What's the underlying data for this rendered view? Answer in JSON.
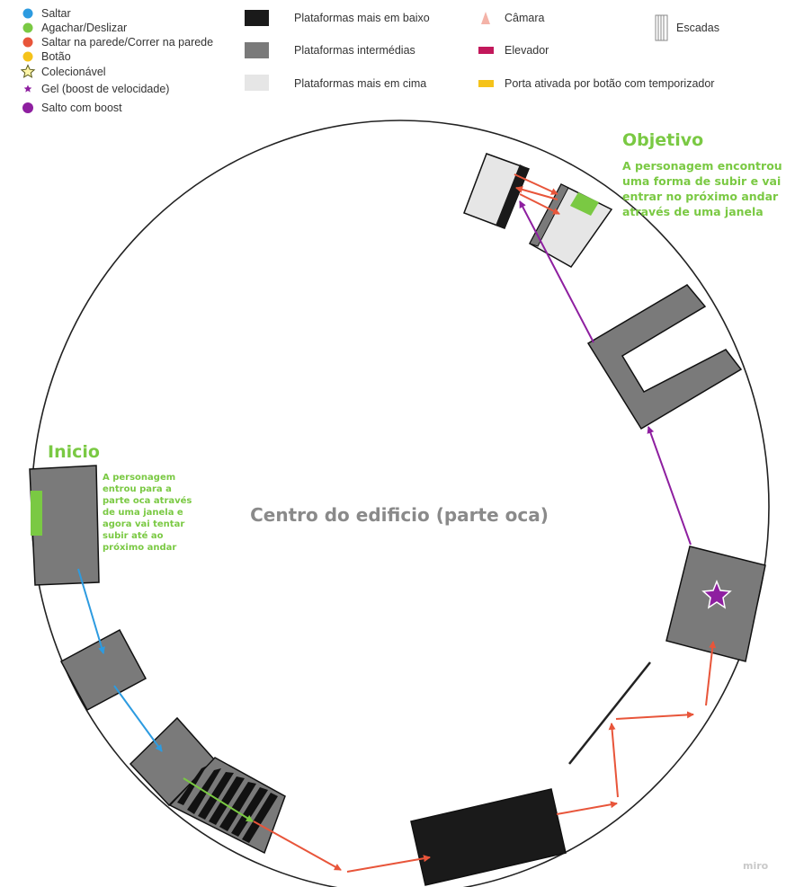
{
  "legend_left": [
    {
      "label": "Saltar",
      "color": "#2d9be0",
      "icon": "blue-dot-icon"
    },
    {
      "label": "Agachar/Deslizar",
      "color": "#7ac943",
      "icon": "green-dot-icon"
    },
    {
      "label": "Saltar na parede/Correr na parede",
      "color": "#e8553a",
      "icon": "red-dot-icon"
    },
    {
      "label": "Botão",
      "color": "#f5c31a",
      "icon": "yellow-dot-icon"
    },
    {
      "label": "Colecionável",
      "color": "#f5e23a",
      "icon": "star-outline-icon"
    },
    {
      "label": "Gel (boost de velocidade)",
      "color": "#8e1fa0",
      "icon": "purple-star-icon"
    },
    {
      "label": "Salto com boost",
      "color": "#8e1fa0",
      "icon": "purple-dot-icon"
    }
  ],
  "legend_platforms": [
    {
      "label": "Plataformas mais em baixo",
      "color": "#1a1a1a"
    },
    {
      "label": "Plataformas intermédias",
      "color": "#7a7a7a"
    },
    {
      "label": "Plataformas mais em cima",
      "color": "#e6e6e6"
    }
  ],
  "legend_other": [
    {
      "label": "Câmara",
      "color": "#f4b3a8",
      "icon": "camera-cone-icon"
    },
    {
      "label": "Elevador",
      "color": "#c2185b",
      "icon": "elevator-icon"
    },
    {
      "label": "Porta ativada por botão com temporizador",
      "color": "#f5c31a",
      "icon": "timed-door-icon"
    }
  ],
  "legend_stairs": {
    "label": "Escadas",
    "icon": "stairs-icon"
  },
  "start": {
    "title": "Inicio",
    "note_lines": [
      "A personagem",
      "entrou para a",
      "parte oca através",
      "de uma janela e",
      "agora vai tentar",
      "subir até ao",
      "próximo andar"
    ]
  },
  "goal": {
    "title": "Objetivo",
    "note_lines": [
      "A personagem encontrou",
      "uma forma de subir e vai",
      "entrar no próximo andar",
      "através de uma janela"
    ]
  },
  "center_label": "Centro do edificio (parte oca)",
  "watermark": "miro",
  "colors": {
    "jump": "#2d9be0",
    "slide": "#7ac943",
    "wall": "#e8553a",
    "boost": "#8e1fa0",
    "low": "#1a1a1a",
    "mid": "#7a7a7a",
    "high": "#e6e6e6"
  }
}
